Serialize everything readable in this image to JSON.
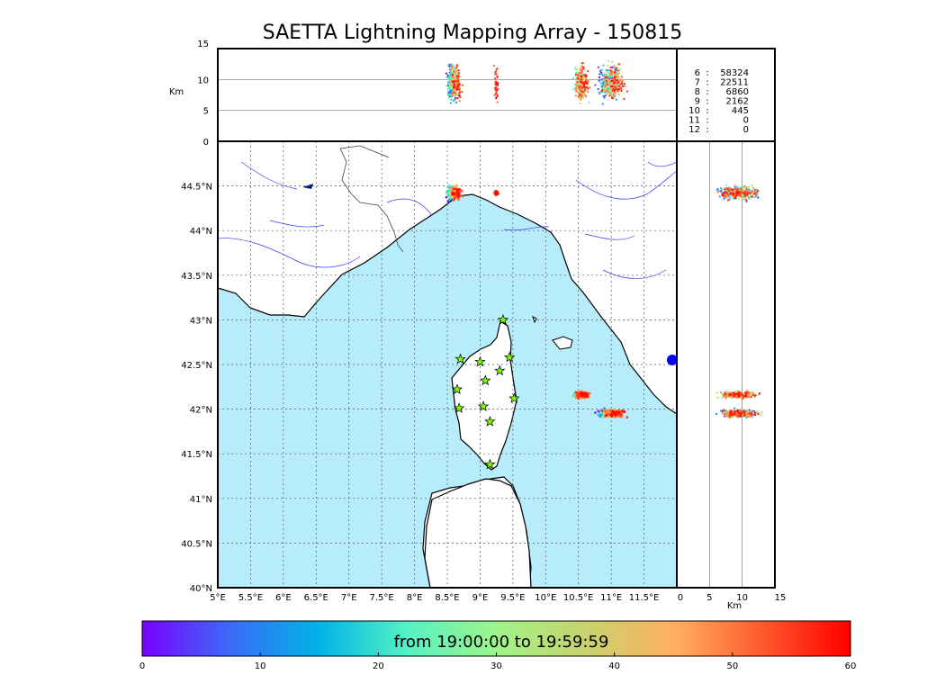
{
  "title": "SAETTA Lightning Mapping Array - 150815",
  "top_panel": {
    "ylabel": "Km",
    "yticks": [
      "15",
      "10",
      "5",
      "0"
    ],
    "gridlines_km": [
      5,
      10
    ],
    "range_km": [
      0,
      15
    ]
  },
  "right_panel": {
    "xlabel": "Km",
    "xticks": [
      "0",
      "5",
      "10",
      "15"
    ],
    "gridlines_km": [
      5,
      10
    ]
  },
  "counts": [
    {
      "label": "6",
      "sep": ":",
      "value": "58324",
      "color": "#000000"
    },
    {
      "label": "7",
      "sep": ":",
      "value": "22511",
      "color": "#e00000"
    },
    {
      "label": "8",
      "sep": ":",
      "value": "6860",
      "color": "#000000"
    },
    {
      "label": "9",
      "sep": ":",
      "value": "2162",
      "color": "#000000"
    },
    {
      "label": "10",
      "sep": ":",
      "value": "445",
      "color": "#000000"
    },
    {
      "label": "11",
      "sep": ":",
      "value": "0",
      "color": "#000000"
    },
    {
      "label": "12",
      "sep": ":",
      "value": "0",
      "color": "#000000"
    }
  ],
  "map": {
    "lon_range": [
      5.0,
      12.0
    ],
    "lat_range": [
      40.0,
      45.0
    ],
    "lon_ticks": [
      "5°E",
      "5.5°E",
      "6°E",
      "6.5°E",
      "7°E",
      "7.5°E",
      "8°E",
      "8.5°E",
      "9°E",
      "9.5°E",
      "10°E",
      "10.5°E",
      "11°E",
      "11.5°E"
    ],
    "lat_ticks": [
      "44.5°N",
      "44°N",
      "43.5°N",
      "43°N",
      "42.5°N",
      "42°N",
      "41.5°N",
      "41°N",
      "40.5°N",
      "40°N"
    ],
    "lat_tick_values": [
      44.5,
      44.0,
      43.5,
      43.0,
      42.5,
      42.0,
      41.5,
      41.0,
      40.5,
      40.0
    ],
    "sea_color": "#b7ecfb",
    "land_color": "#ffffff",
    "station_color": "#7fff00",
    "stations": [
      {
        "lon": 9.35,
        "lat": 43.0
      },
      {
        "lon": 8.7,
        "lat": 42.56
      },
      {
        "lon": 9.0,
        "lat": 42.53
      },
      {
        "lon": 9.45,
        "lat": 42.58
      },
      {
        "lon": 9.3,
        "lat": 42.43
      },
      {
        "lon": 9.08,
        "lat": 42.32
      },
      {
        "lon": 8.65,
        "lat": 42.22
      },
      {
        "lon": 9.52,
        "lat": 42.12
      },
      {
        "lon": 8.68,
        "lat": 42.01
      },
      {
        "lon": 9.05,
        "lat": 42.03
      },
      {
        "lon": 9.15,
        "lat": 41.86
      },
      {
        "lon": 9.15,
        "lat": 41.38
      }
    ],
    "lightning_clusters": [
      {
        "lon": 8.6,
        "lat": 44.42,
        "spread_lon": 0.12,
        "spread_lat": 0.1,
        "n": 320,
        "t0": 0,
        "t1": 60
      },
      {
        "lon": 9.25,
        "lat": 44.42,
        "spread_lon": 0.04,
        "spread_lat": 0.03,
        "n": 40,
        "t0": 50,
        "t1": 60
      },
      {
        "lon": 10.55,
        "lat": 42.16,
        "spread_lon": 0.14,
        "spread_lat": 0.05,
        "n": 260,
        "t0": 20,
        "t1": 60
      },
      {
        "lon": 11.0,
        "lat": 41.95,
        "spread_lon": 0.2,
        "spread_lat": 0.06,
        "n": 420,
        "t0": 0,
        "t1": 60
      }
    ]
  },
  "colorbar": {
    "label": "from 19:00:00 to 19:59:59",
    "ticks": [
      "0",
      "10",
      "20",
      "30",
      "40",
      "50",
      "60"
    ],
    "range": [
      0,
      60
    ],
    "stops": [
      "#7a00ff",
      "#3a6cf6",
      "#00b4e6",
      "#55f2c3",
      "#9ff48a",
      "#c8d26e",
      "#ffb060",
      "#ff5a2d",
      "#ff0000"
    ]
  }
}
